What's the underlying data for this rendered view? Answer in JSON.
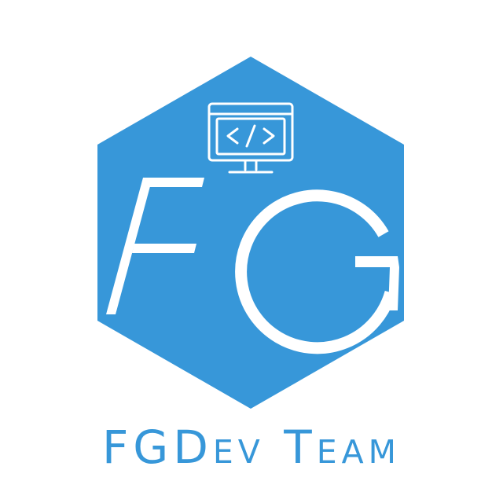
{
  "logo": {
    "monogram": "FG",
    "icon": "monitor-code-icon",
    "team_name": "FGDev Team"
  },
  "colors": {
    "brand_blue": "#3797d9",
    "background": "#ffffff",
    "foreground": "#ffffff"
  }
}
